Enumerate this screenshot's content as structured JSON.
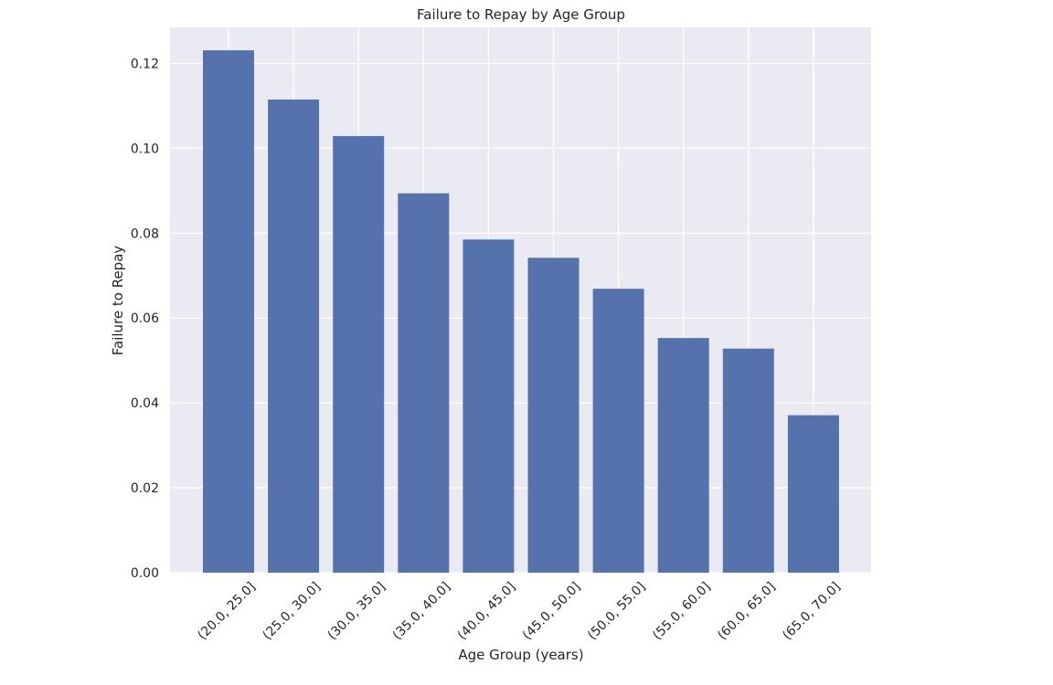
{
  "chart_data": {
    "type": "bar",
    "title": "Failure to Repay by Age Group",
    "xlabel": "Age Group (years)",
    "ylabel": "Failure to Repay",
    "categories": [
      "(20.0, 25.0]",
      "(25.0, 30.0]",
      "(30.0, 35.0]",
      "(35.0, 40.0]",
      "(40.0, 45.0]",
      "(45.0, 50.0]",
      "(50.0, 55.0]",
      "(55.0, 60.0]",
      "(60.0, 65.0]",
      "(65.0, 70.0]"
    ],
    "values": [
      0.1231,
      0.1115,
      0.1029,
      0.0894,
      0.0785,
      0.0742,
      0.0669,
      0.0553,
      0.0528,
      0.0371
    ],
    "ylim": [
      0,
      0.1285
    ],
    "yticks": [
      0.0,
      0.02,
      0.04,
      0.06,
      0.08,
      0.1,
      0.12
    ],
    "ytick_labels": [
      "0.00",
      "0.02",
      "0.04",
      "0.06",
      "0.08",
      "0.10",
      "0.12"
    ],
    "grid": true,
    "colors": {
      "bar": "#5572ad",
      "plot_background": "#eaeaf2",
      "grid": "#ffffff",
      "text": "#262626"
    }
  }
}
